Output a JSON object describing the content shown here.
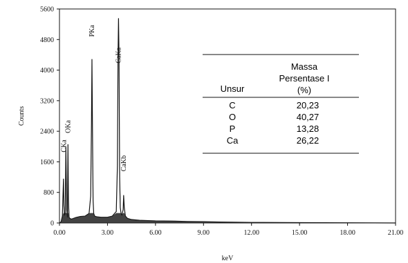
{
  "chart_data": {
    "type": "line",
    "title": "",
    "xlabel": "keV",
    "ylabel": "Counts",
    "xlim": [
      0,
      21
    ],
    "ylim": [
      0,
      5600
    ],
    "xticks": [
      "0.00",
      "3.00",
      "6.00",
      "9.00",
      "12.00",
      "15.00",
      "18.00",
      "21.00"
    ],
    "yticks": [
      "0",
      "800",
      "1600",
      "2400",
      "3200",
      "4000",
      "4800",
      "5600"
    ],
    "series": [
      {
        "x": [
          0.0,
          0.1,
          0.18,
          0.25,
          0.28,
          0.31,
          0.36,
          0.4,
          0.45,
          0.5,
          0.53,
          0.56,
          0.6,
          0.65,
          0.75,
          1.0,
          1.3,
          1.6,
          1.85,
          1.95,
          2.0,
          2.03,
          2.06,
          2.1,
          2.14,
          2.2,
          2.35,
          2.6,
          3.0,
          3.3,
          3.55,
          3.62,
          3.66,
          3.69,
          3.72,
          3.76,
          3.8,
          3.85,
          3.9,
          3.98,
          4.01,
          4.05,
          4.12,
          4.25,
          4.5,
          5.0,
          6.0,
          7.0,
          8.0,
          9.0,
          10.0,
          12.0,
          15.0,
          18.0,
          21.0
        ],
        "y": [
          0,
          30,
          180,
          1150,
          450,
          200,
          250,
          1980,
          350,
          150,
          2050,
          600,
          150,
          120,
          100,
          140,
          170,
          180,
          250,
          700,
          2600,
          4280,
          2600,
          600,
          250,
          180,
          160,
          150,
          150,
          180,
          300,
          1500,
          4400,
          5350,
          4400,
          1200,
          400,
          250,
          200,
          350,
          720,
          400,
          180,
          120,
          90,
          70,
          55,
          50,
          40,
          35,
          25,
          15,
          10,
          5,
          0
        ]
      }
    ],
    "annotations": [
      {
        "text": "CKa",
        "x": 0.28,
        "y": 1850
      },
      {
        "text": "OKa",
        "x": 0.53,
        "y": 2350
      },
      {
        "text": "PKa",
        "x": 2.03,
        "y": 4870
      },
      {
        "text": "CaKa",
        "x": 3.69,
        "y": 4180
      },
      {
        "text": "CaKb",
        "x": 4.01,
        "y": 1350
      }
    ],
    "grid": false,
    "legend": "none"
  },
  "table": {
    "headers": {
      "element": "Unsur",
      "mass_line1": "Massa",
      "mass_line2": "Persentase I",
      "mass_line3": "(%)"
    },
    "rows": [
      {
        "element": "C",
        "mass": "20,23"
      },
      {
        "element": "O",
        "mass": "40,27"
      },
      {
        "element": "P",
        "mass": "13,28"
      },
      {
        "element": "Ca",
        "mass": "26,22"
      }
    ]
  },
  "colors": {
    "line": "#111111",
    "axis": "#111111",
    "background": "#ffffff"
  }
}
